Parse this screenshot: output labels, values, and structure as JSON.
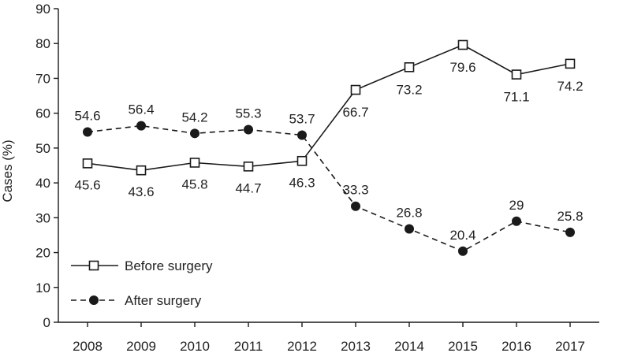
{
  "chart_data": {
    "type": "line",
    "title": "",
    "xlabel": "",
    "ylabel": "Cases (%)",
    "ylim": [
      0,
      90
    ],
    "yticks": [
      0,
      10,
      20,
      30,
      40,
      50,
      60,
      70,
      80,
      90
    ],
    "x": [
      "2008",
      "2009",
      "2010",
      "2011",
      "2012",
      "2013",
      "2014",
      "2015",
      "2016",
      "2017"
    ],
    "grid": false,
    "legend": "bottom-left",
    "series": [
      {
        "name": "Before surgery",
        "style": "solid",
        "marker": "open-square",
        "values": [
          45.6,
          43.6,
          45.8,
          44.7,
          46.3,
          66.7,
          73.2,
          79.6,
          71.1,
          74.2
        ],
        "labels": [
          "45.6",
          "43.6",
          "45.8",
          "44.7",
          "46.3",
          "66.7",
          "73.2",
          "79.6",
          "71.1",
          "74.2"
        ]
      },
      {
        "name": "After surgery",
        "style": "dashed",
        "marker": "filled-circle",
        "values": [
          54.6,
          56.4,
          54.2,
          55.3,
          53.7,
          33.3,
          26.8,
          20.4,
          29,
          25.8
        ],
        "labels": [
          "54.6",
          "56.4",
          "54.2",
          "55.3",
          "53.7",
          "33.3",
          "26.8",
          "20.4",
          "29",
          "25.8"
        ]
      }
    ],
    "colors": {
      "line": "#1a1a1a",
      "marker_fill_open": "#ffffff",
      "marker_fill_solid": "#1a1a1a"
    }
  }
}
